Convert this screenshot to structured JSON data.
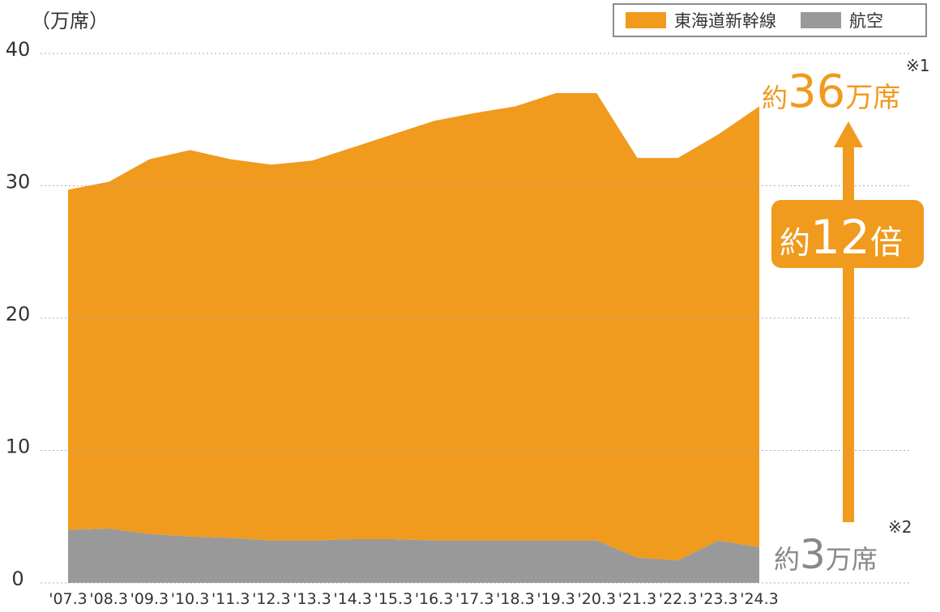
{
  "chart_data": {
    "type": "stacked_area",
    "unit_label": "（万席）",
    "categories": [
      "'07.3",
      "'08.3",
      "'09.3",
      "'10.3",
      "'11.3",
      "'12.3",
      "'13.3",
      "'14.3",
      "'15.3",
      "'16.3",
      "'17.3",
      "'18.3",
      "'19.3",
      "'20.3",
      "'21.3",
      "'22.3",
      "'23.3",
      "'24.3"
    ],
    "series": [
      {
        "name": "東海道新幹線",
        "color": "#f09a1e",
        "values": [
          25.7,
          26.2,
          28.3,
          29.2,
          28.6,
          28.4,
          28.7,
          29.6,
          30.6,
          31.7,
          32.3,
          32.8,
          33.8,
          33.8,
          30.2,
          30.4,
          30.7,
          33.3
        ]
      },
      {
        "name": "航空",
        "color": "#999999",
        "values": [
          4.0,
          4.1,
          3.7,
          3.5,
          3.4,
          3.2,
          3.2,
          3.3,
          3.3,
          3.2,
          3.2,
          3.2,
          3.2,
          3.2,
          1.9,
          1.7,
          3.2,
          2.7
        ]
      }
    ],
    "ylim": [
      0,
      40
    ],
    "yticks": [
      0,
      10,
      20,
      30,
      40
    ],
    "grid": true,
    "annotations": [
      {
        "parts": [
          "約",
          "36",
          "万席"
        ],
        "note": "※1"
      },
      {
        "parts": [
          "約",
          "12",
          "倍"
        ]
      },
      {
        "parts": [
          "約",
          "3",
          "万席"
        ],
        "note": "※2"
      }
    ]
  }
}
